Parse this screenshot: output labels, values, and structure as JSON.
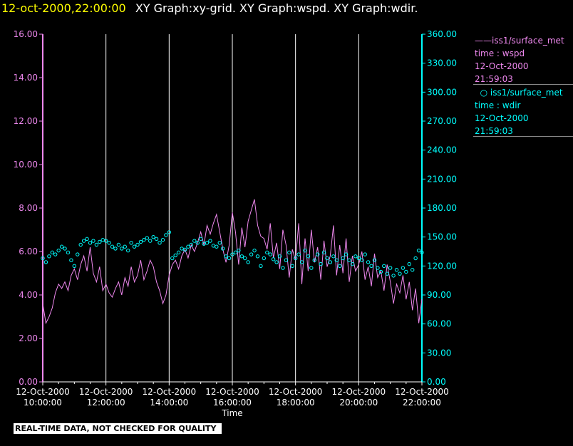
{
  "header": {
    "timestamp": "12-oct-2000,22:00:00",
    "graphs": "XY Graph:xy-grid.  XY Graph:wspd.  XY Graph:wdir."
  },
  "legend": {
    "wspd": {
      "line1": "iss1/surface_met",
      "line2": "time : wspd",
      "line3": "12-Oct-2000",
      "line4": "21:59:03"
    },
    "wdir": {
      "line1": "iss1/surface_met",
      "line2": "time : wdir",
      "line3": "12-Oct-2000",
      "line4": "21:59:03"
    }
  },
  "note": "REAL-TIME DATA, NOT CHECKED FOR QUALITY",
  "colors": {
    "wspd": "#ee88ee",
    "wdir": "#00ffff",
    "grid": "#ffffff",
    "header_timestamp": "#ffff00"
  },
  "chart_data": {
    "type": "line",
    "xlabel": "Time",
    "xlim_hours": [
      10,
      22
    ],
    "x_ticks": [
      {
        "hour": 10,
        "date": "12-Oct-2000",
        "time": "10:00:00"
      },
      {
        "hour": 12,
        "date": "12-Oct-2000",
        "time": "12:00:00"
      },
      {
        "hour": 14,
        "date": "12-Oct-2000",
        "time": "14:00:00"
      },
      {
        "hour": 16,
        "date": "12-Oct-2000",
        "time": "16:00:00"
      },
      {
        "hour": 18,
        "date": "12-Oct-2000",
        "time": "18:00:00"
      },
      {
        "hour": 20,
        "date": "12-Oct-2000",
        "time": "20:00:00"
      },
      {
        "hour": 22,
        "date": "12-Oct-2000",
        "time": "22:00:00"
      }
    ],
    "y_left": {
      "lim": [
        0,
        16
      ],
      "ticks": [
        "0.00",
        "2.00",
        "4.00",
        "6.00",
        "8.00",
        "10.00",
        "12.00",
        "14.00",
        "16.00"
      ]
    },
    "y_right": {
      "lim": [
        0,
        360
      ],
      "ticks": [
        "0.00",
        "30.00",
        "60.00",
        "90.00",
        "120.00",
        "150.00",
        "180.00",
        "210.00",
        "240.00",
        "270.00",
        "300.00",
        "330.00",
        "360.00"
      ]
    },
    "grid": "vertical lines at each x tick",
    "series": [
      {
        "name": "iss1/surface_met time : wspd",
        "axis": "left",
        "style": "line",
        "x_hours": [
          10.0,
          10.1,
          10.2,
          10.3,
          10.4,
          10.5,
          10.6,
          10.7,
          10.8,
          10.9,
          11.0,
          11.1,
          11.2,
          11.3,
          11.4,
          11.5,
          11.6,
          11.7,
          11.8,
          11.9,
          12.0,
          12.1,
          12.2,
          12.3,
          12.4,
          12.5,
          12.6,
          12.7,
          12.8,
          12.9,
          13.0,
          13.1,
          13.2,
          13.3,
          13.4,
          13.5,
          13.6,
          13.7,
          13.8,
          13.9,
          14.0,
          14.1,
          14.2,
          14.3,
          14.4,
          14.5,
          14.6,
          14.7,
          14.8,
          14.9,
          15.0,
          15.1,
          15.2,
          15.3,
          15.4,
          15.5,
          15.6,
          15.7,
          15.8,
          15.9,
          16.0,
          16.1,
          16.2,
          16.3,
          16.4,
          16.5,
          16.6,
          16.7,
          16.8,
          16.9,
          17.0,
          17.1,
          17.2,
          17.3,
          17.4,
          17.5,
          17.6,
          17.7,
          17.8,
          17.9,
          18.0,
          18.1,
          18.2,
          18.3,
          18.4,
          18.5,
          18.6,
          18.7,
          18.8,
          18.9,
          19.0,
          19.1,
          19.2,
          19.3,
          19.4,
          19.5,
          19.6,
          19.7,
          19.8,
          19.9,
          20.0,
          20.1,
          20.2,
          20.3,
          20.4,
          20.5,
          20.6,
          20.7,
          20.8,
          20.9,
          21.0,
          21.1,
          21.2,
          21.3,
          21.4,
          21.5,
          21.6,
          21.7,
          21.8,
          21.9,
          22.0
        ],
        "values": [
          3.6,
          2.7,
          3.0,
          3.4,
          4.1,
          4.5,
          4.3,
          4.6,
          4.2,
          4.9,
          5.2,
          4.7,
          5.4,
          5.8,
          5.1,
          6.2,
          5.0,
          4.6,
          5.3,
          4.2,
          4.5,
          4.1,
          3.9,
          4.3,
          4.6,
          4.0,
          4.8,
          4.4,
          5.3,
          4.6,
          4.9,
          5.6,
          4.7,
          5.1,
          5.6,
          5.3,
          4.6,
          4.2,
          3.6,
          4.0,
          4.9,
          5.4,
          5.6,
          5.2,
          5.8,
          6.1,
          5.7,
          6.3,
          6.0,
          6.4,
          6.9,
          6.3,
          7.2,
          6.8,
          7.3,
          7.7,
          6.9,
          6.1,
          5.5,
          6.3,
          7.8,
          6.9,
          5.4,
          7.1,
          6.2,
          7.4,
          7.9,
          8.4,
          7.2,
          6.7,
          6.6,
          6.1,
          7.3,
          5.7,
          6.4,
          5.2,
          7.0,
          6.3,
          4.8,
          6.1,
          5.6,
          7.3,
          4.5,
          6.6,
          5.1,
          7.0,
          5.5,
          6.2,
          4.7,
          6.5,
          5.3,
          5.8,
          7.2,
          4.9,
          6.3,
          5.0,
          6.6,
          4.6,
          5.8,
          5.1,
          5.4,
          6.0,
          4.7,
          5.3,
          4.4,
          5.9,
          4.8,
          5.1,
          4.2,
          5.4,
          4.6,
          3.6,
          4.5,
          4.1,
          4.9,
          3.8,
          4.6,
          3.3,
          4.3,
          2.7,
          3.8
        ]
      },
      {
        "name": "iss1/surface_met time : wdir",
        "axis": "right",
        "style": "markers",
        "x_hours": [
          10.0,
          10.1,
          10.2,
          10.3,
          10.4,
          10.5,
          10.6,
          10.7,
          10.8,
          10.9,
          11.0,
          11.1,
          11.2,
          11.3,
          11.4,
          11.5,
          11.6,
          11.7,
          11.8,
          11.9,
          12.0,
          12.1,
          12.2,
          12.3,
          12.4,
          12.5,
          12.6,
          12.7,
          12.8,
          12.9,
          13.0,
          13.1,
          13.2,
          13.3,
          13.4,
          13.5,
          13.6,
          13.7,
          13.8,
          13.9,
          14.0,
          14.1,
          14.2,
          14.3,
          14.4,
          14.5,
          14.6,
          14.7,
          14.8,
          14.9,
          15.0,
          15.1,
          15.2,
          15.3,
          15.4,
          15.5,
          15.6,
          15.7,
          15.8,
          15.9,
          16.0,
          16.1,
          16.2,
          16.3,
          16.4,
          16.5,
          16.6,
          16.7,
          16.8,
          16.9,
          17.0,
          17.1,
          17.2,
          17.3,
          17.4,
          17.5,
          17.6,
          17.7,
          17.8,
          17.9,
          18.0,
          18.1,
          18.2,
          18.3,
          18.4,
          18.5,
          18.6,
          18.7,
          18.8,
          18.9,
          19.0,
          19.1,
          19.2,
          19.3,
          19.4,
          19.5,
          19.6,
          19.7,
          19.8,
          19.9,
          20.0,
          20.1,
          20.2,
          20.3,
          20.4,
          20.5,
          20.6,
          20.7,
          20.8,
          20.9,
          21.0,
          21.1,
          21.2,
          21.3,
          21.4,
          21.5,
          21.6,
          21.7,
          21.8,
          21.9,
          22.0
        ],
        "values": [
          128,
          124,
          130,
          134,
          132,
          136,
          140,
          138,
          134,
          126,
          120,
          132,
          142,
          146,
          148,
          144,
          146,
          142,
          145,
          147,
          146,
          144,
          140,
          138,
          142,
          138,
          140,
          136,
          144,
          140,
          142,
          145,
          147,
          149,
          146,
          150,
          148,
          144,
          147,
          152,
          155,
          128,
          131,
          134,
          138,
          137,
          140,
          142,
          146,
          144,
          148,
          143,
          144,
          146,
          141,
          140,
          144,
          138,
          130,
          128,
          132,
          134,
          136,
          130,
          128,
          124,
          132,
          136,
          130,
          120,
          128,
          134,
          132,
          127,
          124,
          130,
          118,
          126,
          134,
          120,
          128,
          132,
          124,
          136,
          130,
          118,
          126,
          132,
          122,
          134,
          128,
          124,
          130,
          126,
          120,
          128,
          132,
          126,
          122,
          130,
          128,
          126,
          132,
          124,
          120,
          126,
          118,
          114,
          120,
          112,
          118,
          110,
          116,
          112,
          118,
          114,
          122,
          116,
          128,
          136,
          134
        ]
      }
    ]
  }
}
